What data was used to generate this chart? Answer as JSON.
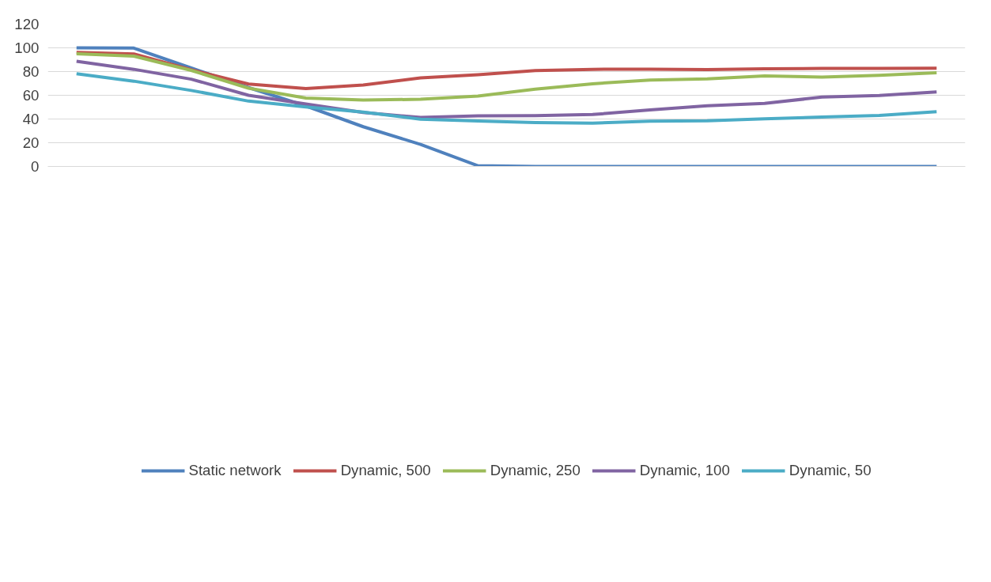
{
  "chart_data": {
    "type": "line",
    "categories": [
      null,
      null,
      null,
      null,
      null,
      null,
      null,
      null,
      null,
      null,
      null,
      null,
      null,
      null,
      null,
      null
    ],
    "ylim": [
      0,
      120
    ],
    "yticks": [
      0,
      20,
      40,
      60,
      80,
      100,
      120
    ],
    "grid": "y",
    "legend": "bottom",
    "marker": "none",
    "line_style": "solid",
    "series": [
      {
        "name": "Static network",
        "color": "#4f81bd",
        "values": [
          100,
          99.8,
          83,
          66.5,
          51,
          33.5,
          18.6,
          0.6,
          0,
          0,
          0,
          0,
          0,
          0,
          0,
          0
        ]
      },
      {
        "name": "Dynamic, 500",
        "color": "#c0504d",
        "values": [
          96.2,
          94.8,
          81.5,
          69.5,
          65.6,
          68.6,
          74.6,
          77.4,
          80.9,
          81.9,
          82.0,
          81.7,
          82.3,
          82.6,
          82.7,
          82.8
        ]
      },
      {
        "name": "Dynamic, 250",
        "color": "#9bbb59",
        "values": [
          95,
          93,
          81,
          66,
          57.7,
          56,
          56.6,
          59.4,
          65.2,
          69.7,
          72.9,
          73.9,
          76.3,
          75.4,
          76.8,
          79
        ]
      },
      {
        "name": "Dynamic, 100",
        "color": "#8064a2",
        "values": [
          88.7,
          81.9,
          73.6,
          60,
          52.7,
          45.5,
          41.3,
          42.7,
          42.8,
          43.8,
          47.6,
          51.2,
          53.1,
          58.5,
          59.8,
          62.9
        ]
      },
      {
        "name": "Dynamic, 50",
        "color": "#4bacc6",
        "values": [
          78.2,
          71.9,
          64.1,
          55.1,
          50.1,
          45.8,
          39.8,
          38.4,
          37,
          36.5,
          38.2,
          38.5,
          40.1,
          41.7,
          43,
          46.2
        ]
      }
    ]
  }
}
